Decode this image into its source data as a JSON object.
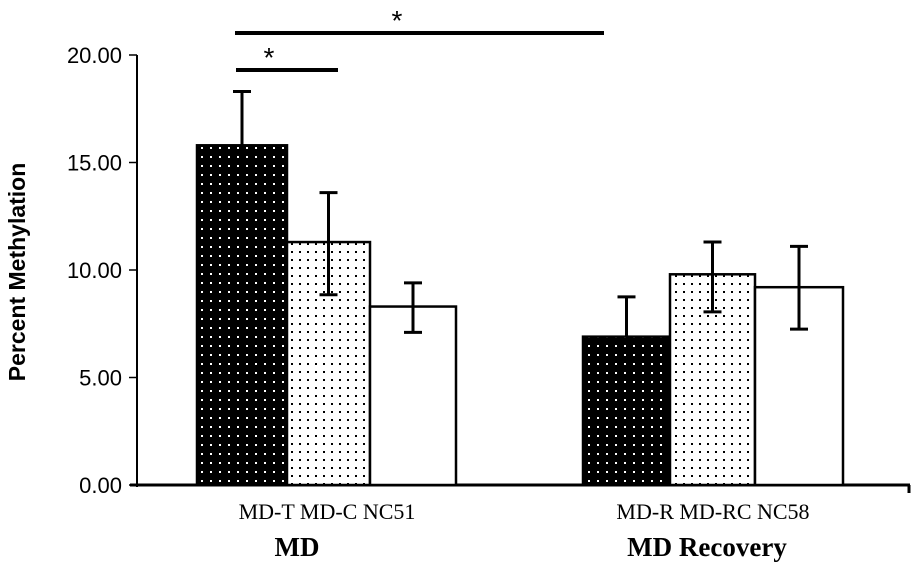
{
  "chart_data": {
    "type": "bar",
    "title": "",
    "ylabel": "Percent Methylation",
    "xlabel": "",
    "ylim": [
      0,
      20
    ],
    "yticks": [
      "0.00",
      "5.00",
      "10.00",
      "15.00",
      "20.00"
    ],
    "groups": [
      {
        "name": "MD",
        "categories": [
          "MD-T",
          "MD-C",
          "NC51"
        ],
        "values": [
          15.8,
          11.3,
          8.3
        ],
        "err_upper": [
          18.3,
          13.6,
          9.4
        ],
        "err_lower": [
          null,
          8.85,
          7.1
        ],
        "patterns": [
          "dark-dots",
          "light-dots",
          "white"
        ]
      },
      {
        "name": "MD Recovery",
        "categories": [
          "MD-R",
          "MD-RC",
          "NC58"
        ],
        "values": [
          6.9,
          9.8,
          9.2
        ],
        "err_upper": [
          8.75,
          11.3,
          11.1
        ],
        "err_lower": [
          null,
          8.05,
          7.25
        ],
        "patterns": [
          "dark-dots",
          "light-dots",
          "white"
        ]
      }
    ],
    "significance": [
      {
        "from": "MD-T",
        "to": "MD-C",
        "label": "*"
      },
      {
        "from": "MD-T",
        "to": "MD-R",
        "label": "*"
      }
    ]
  }
}
